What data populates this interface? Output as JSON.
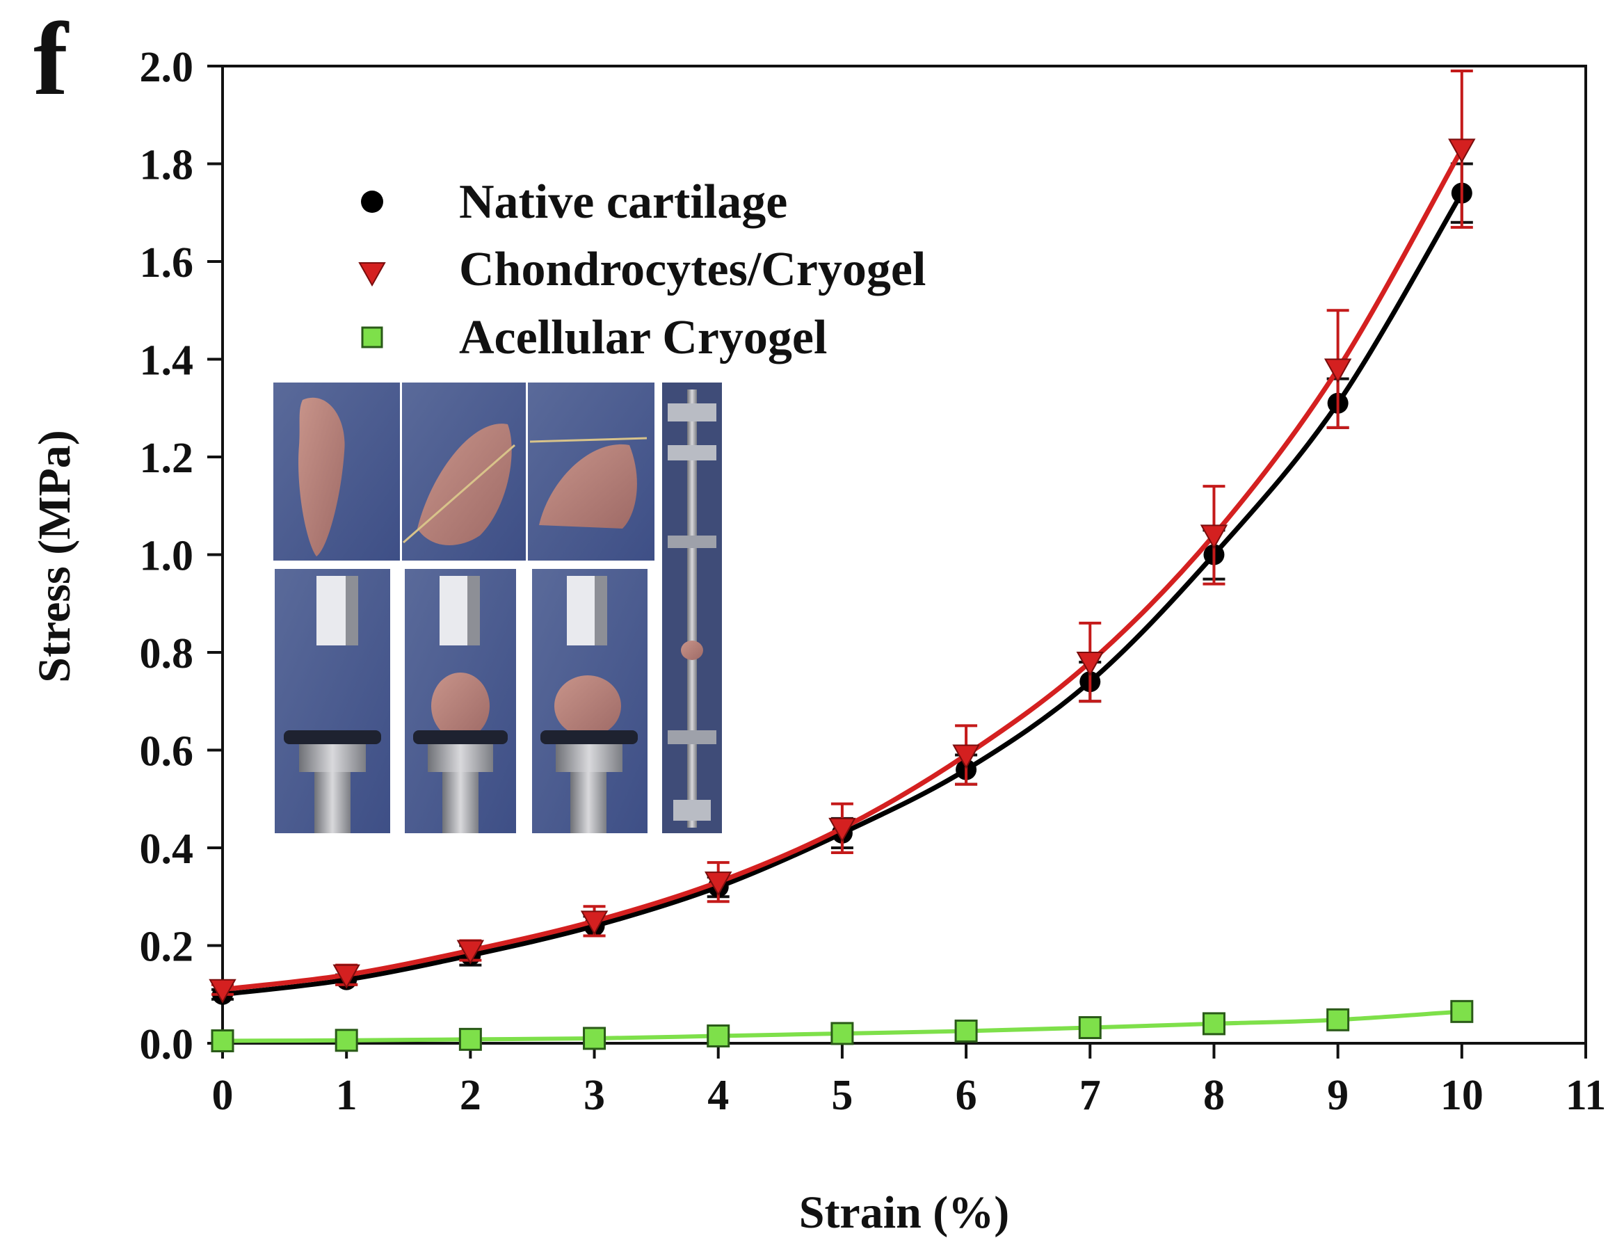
{
  "chart_data": {
    "type": "line",
    "panel_label": "f",
    "xlabel": "Strain (%)",
    "ylabel": "Stress (MPa)",
    "xlim": [
      0,
      11
    ],
    "ylim": [
      0,
      2.0
    ],
    "x_ticks": [
      "0",
      "1",
      "2",
      "3",
      "4",
      "5",
      "6",
      "7",
      "8",
      "9",
      "10",
      "11"
    ],
    "y_ticks": [
      "0.0",
      "0.2",
      "0.4",
      "0.6",
      "0.8",
      "1.0",
      "1.2",
      "1.4",
      "1.6",
      "1.8",
      "2.0"
    ],
    "grid": false,
    "legend_position": "top-left",
    "x": [
      0,
      1,
      2,
      3,
      4,
      5,
      6,
      7,
      8,
      9,
      10
    ],
    "series": [
      {
        "name": "Native cartilage",
        "marker": "circle",
        "color": "#000000",
        "values": [
          0.1,
          0.13,
          0.18,
          0.24,
          0.32,
          0.43,
          0.56,
          0.74,
          1.0,
          1.31,
          1.74
        ],
        "errors": [
          0.01,
          0.01,
          0.02,
          0.02,
          0.02,
          0.03,
          0.03,
          0.04,
          0.05,
          0.05,
          0.06
        ]
      },
      {
        "name": "Chondrocytes/Cryogel",
        "marker": "triangle-down",
        "color": "#d42020",
        "values": [
          0.11,
          0.14,
          0.19,
          0.25,
          0.33,
          0.44,
          0.59,
          0.78,
          1.04,
          1.38,
          1.83
        ],
        "errors": [
          0.01,
          0.02,
          0.02,
          0.03,
          0.04,
          0.05,
          0.06,
          0.08,
          0.1,
          0.12,
          0.16
        ]
      },
      {
        "name": "Acellular Cryogel",
        "marker": "square",
        "color": "#7ee04a",
        "values": [
          0.005,
          0.006,
          0.008,
          0.01,
          0.015,
          0.02,
          0.025,
          0.032,
          0.04,
          0.048,
          0.065
        ],
        "errors": [
          0,
          0,
          0,
          0,
          0,
          0,
          0,
          0,
          0,
          0,
          0
        ]
      }
    ]
  },
  "inset": {
    "description_icon": "cartilage-compression-test-photo-icon"
  }
}
